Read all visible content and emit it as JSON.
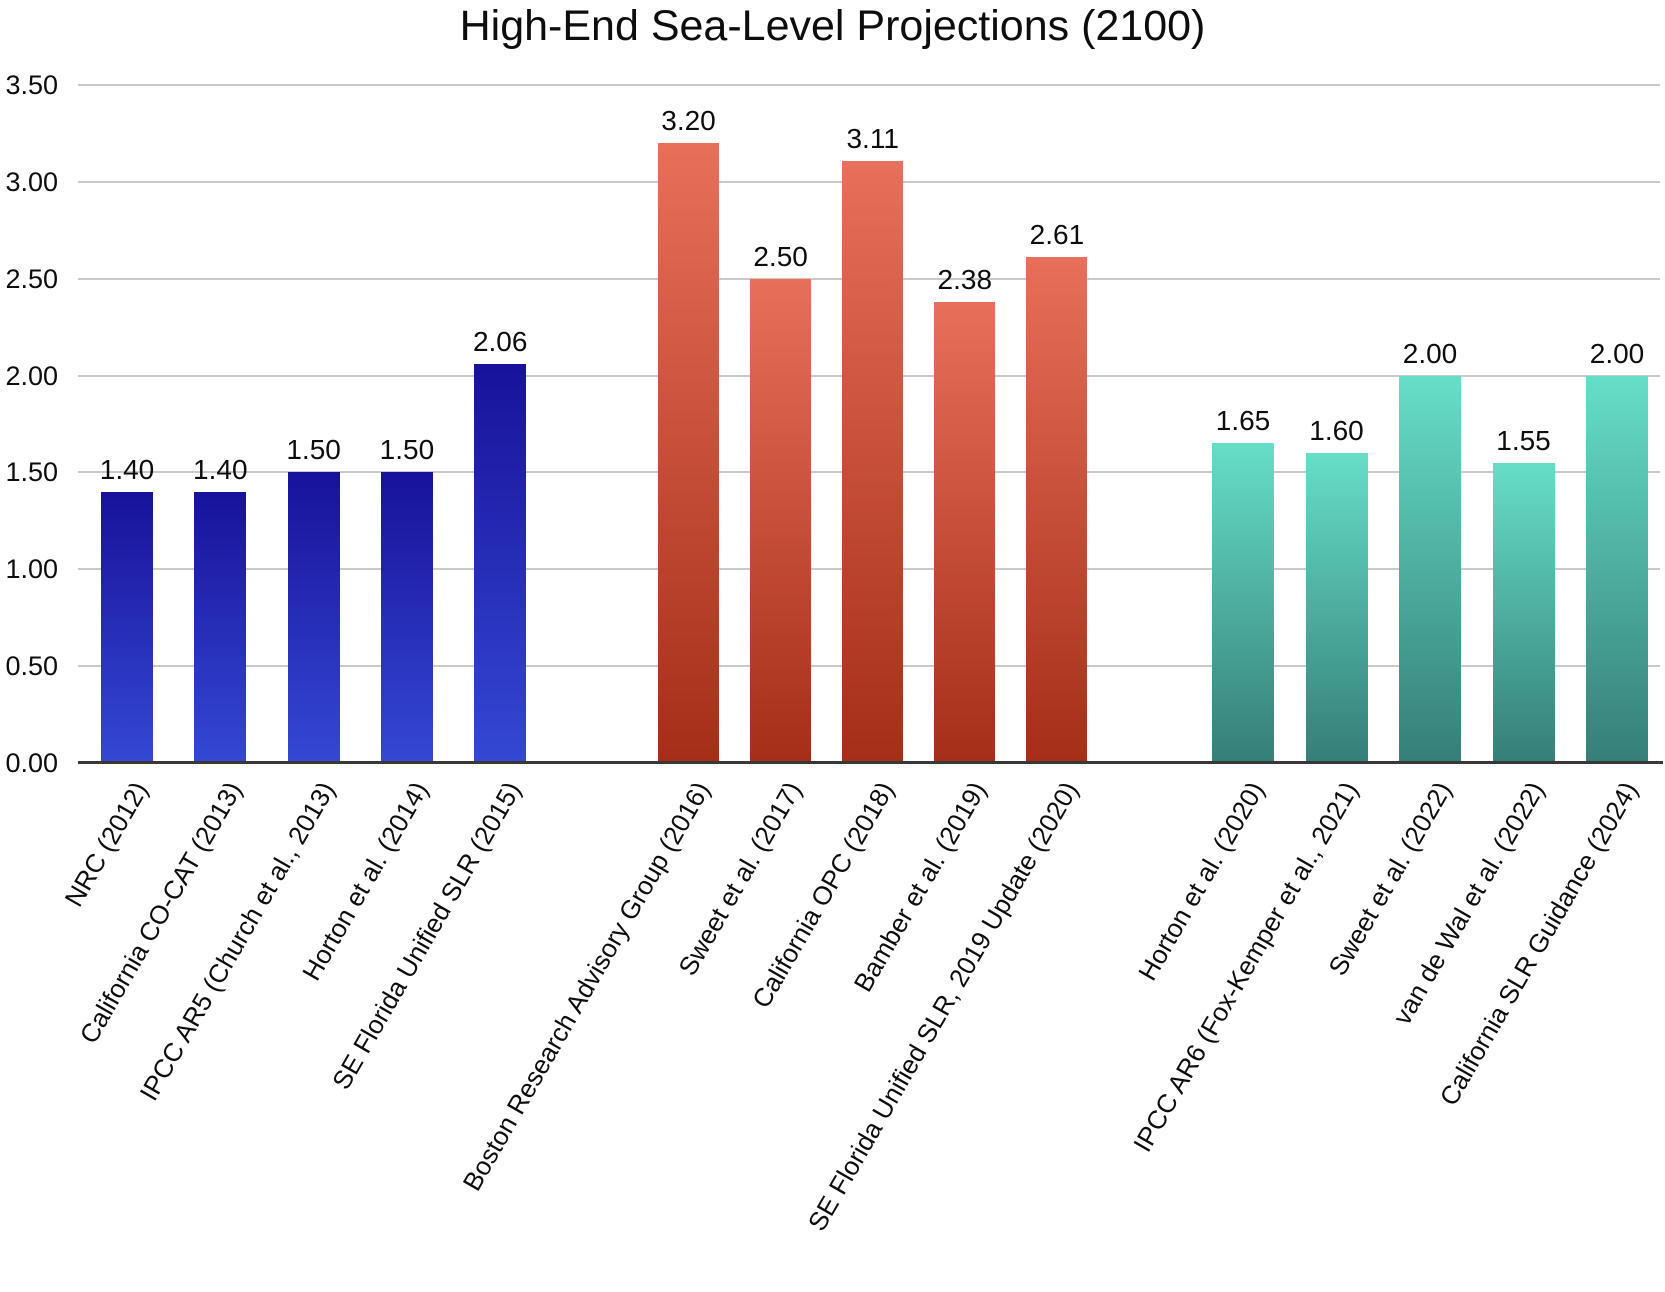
{
  "title": "High-End Sea-Level Projections (2100)",
  "chart_data": {
    "type": "bar",
    "title": "High-End Sea-Level Projections (2100)",
    "xlabel": "",
    "ylabel": "",
    "ylim": [
      0,
      3.5
    ],
    "grid": true,
    "legend_position": "none",
    "yticks": [
      {
        "value": 0.0,
        "label": "0.00"
      },
      {
        "value": 0.5,
        "label": "0.50"
      },
      {
        "value": 1.0,
        "label": "1.00"
      },
      {
        "value": 1.5,
        "label": "1.50"
      },
      {
        "value": 2.0,
        "label": "2.00"
      },
      {
        "value": 2.5,
        "label": "2.50"
      },
      {
        "value": 3.0,
        "label": "3.00"
      },
      {
        "value": 3.5,
        "label": "3.50"
      }
    ],
    "groups": [
      {
        "color_top": "#18129a",
        "color_bottom": "#3448d4",
        "bars": [
          {
            "category": "NRC (2012)",
            "value": 1.4,
            "label": "1.40"
          },
          {
            "category": "California CO-CAT (2013)",
            "value": 1.4,
            "label": "1.40"
          },
          {
            "category": "IPCC AR5 (Church et al., 2013)",
            "value": 1.5,
            "label": "1.50"
          },
          {
            "category": "Horton et al. (2014)",
            "value": 1.5,
            "label": "1.50"
          },
          {
            "category": "SE Florida Unified SLR (2015)",
            "value": 2.06,
            "label": "2.06"
          }
        ]
      },
      {
        "color_top": "#e8705a",
        "color_bottom": "#a52e17",
        "bars": [
          {
            "category": "Boston Research Advisory Group (2016)",
            "value": 3.2,
            "label": "3.20"
          },
          {
            "category": "Sweet et al. (2017)",
            "value": 2.5,
            "label": "2.50"
          },
          {
            "category": "California OPC (2018)",
            "value": 3.11,
            "label": "3.11"
          },
          {
            "category": "Bamber et al. (2019)",
            "value": 2.38,
            "label": "2.38"
          },
          {
            "category": "SE Florida Unified SLR, 2019 Update (2020)",
            "value": 2.61,
            "label": "2.61"
          }
        ]
      },
      {
        "color_top": "#66dec7",
        "color_bottom": "#357e78",
        "bars": [
          {
            "category": "Horton et al. (2020)",
            "value": 1.65,
            "label": "1.65"
          },
          {
            "category": "IPCC AR6 (Fox-Kemper et al., 2021)",
            "value": 1.6,
            "label": "1.60"
          },
          {
            "category": "Sweet et al. (2022)",
            "value": 2.0,
            "label": "2.00"
          },
          {
            "category": "van de Wal et al. (2022)",
            "value": 1.55,
            "label": "1.55"
          },
          {
            "category": "California SLR Guidance (2024)",
            "value": 2.0,
            "label": "2.00"
          }
        ]
      }
    ]
  }
}
